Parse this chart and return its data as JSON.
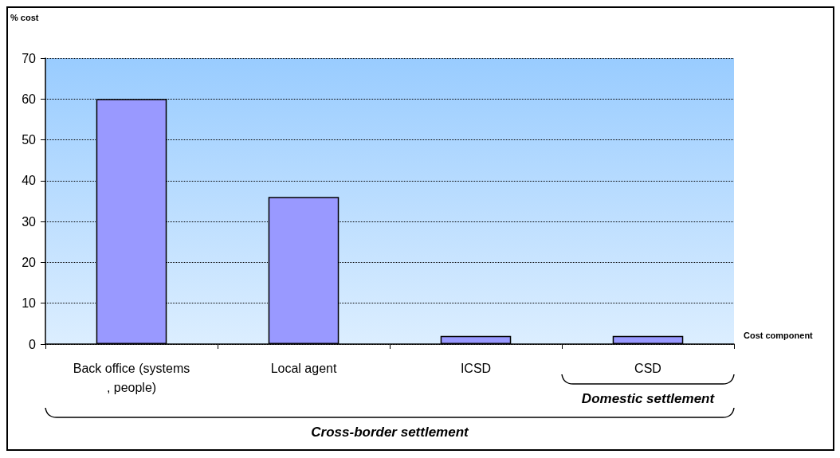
{
  "chart_data": {
    "type": "bar",
    "categories": [
      "Back office (systems, people)",
      "Local agent",
      "ICSD",
      "CSD"
    ],
    "values": [
      60,
      36,
      2,
      2
    ],
    "color": "#9999ff",
    "ylabel": "% cost",
    "xlabel": "Cost component",
    "ylim": [
      0,
      70
    ],
    "yticks": [
      0,
      10,
      20,
      30,
      40,
      50,
      60,
      70
    ],
    "grid": "y",
    "annotations": [
      "Domestic settlement",
      "Cross-border settlement"
    ]
  }
}
